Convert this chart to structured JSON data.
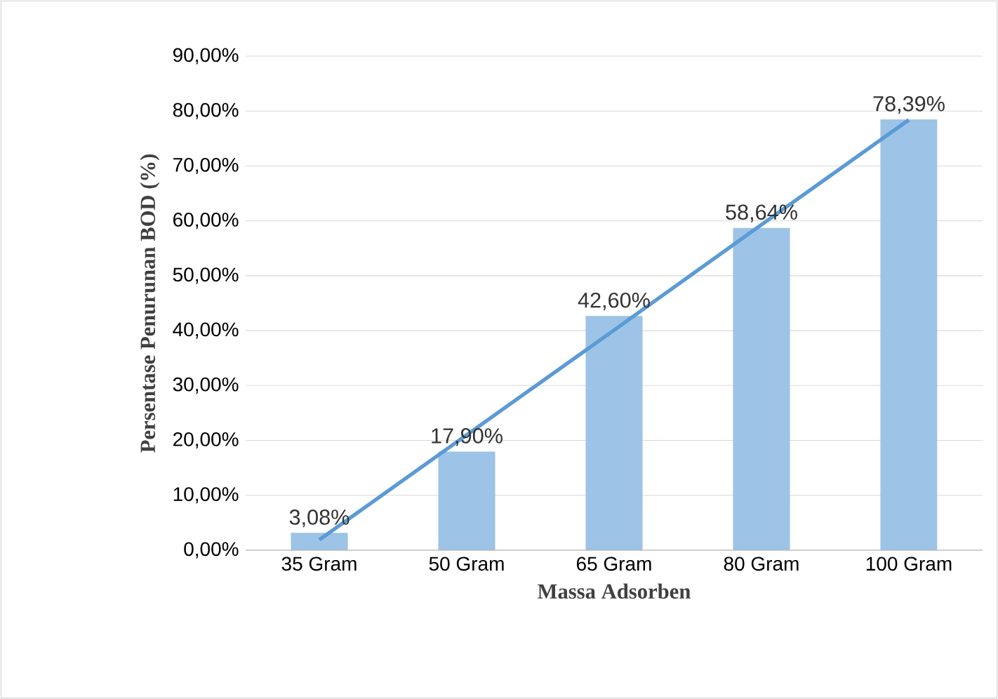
{
  "chart_data": {
    "type": "bar",
    "xlabel": "Massa Adsorben",
    "ylabel": "Persentase Penurunan BOD (%)",
    "categories": [
      "35 Gram",
      "50 Gram",
      "65 Gram",
      "80 Gram",
      "100 Gram"
    ],
    "series": [
      {
        "color": "#9dc3e6",
        "values": [
          3.08,
          17.9,
          42.6,
          58.64,
          78.39
        ],
        "value_labels": [
          "3,08%",
          "17,90%",
          "42,60%",
          "58,64%",
          "78,39%"
        ]
      },
      {
        "type": "line",
        "color": "#5b9bd5",
        "values": [
          1.9,
          21.0,
          40.1,
          59.3,
          78.4
        ]
      }
    ],
    "ylim": [
      0,
      90
    ],
    "yticks": [
      {
        "value": 0,
        "label": "0,00%"
      },
      {
        "value": 10,
        "label": "10,00%"
      },
      {
        "value": 20,
        "label": "20,00%"
      },
      {
        "value": 30,
        "label": "30,00%"
      },
      {
        "value": 40,
        "label": "40,00%"
      },
      {
        "value": 50,
        "label": "50,00%"
      },
      {
        "value": 60,
        "label": "60,00%"
      },
      {
        "value": 70,
        "label": "70,00%"
      },
      {
        "value": 80,
        "label": "80,00%"
      },
      {
        "value": 90,
        "label": "90,00%"
      }
    ],
    "grid": "y",
    "marker": "none"
  }
}
